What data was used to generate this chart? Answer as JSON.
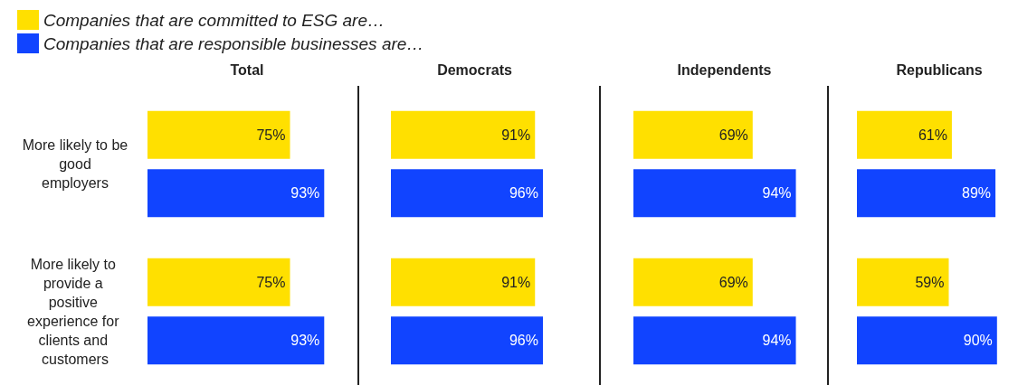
{
  "chart_data": [
    {
      "type": "bar",
      "orientation": "horizontal",
      "title": "Total",
      "legend": "top left",
      "categories": [
        "More likely to be good employers",
        "More likely to provide a positive experience for clients and customers"
      ],
      "series": [
        {
          "name": "Companies that are committed to ESG are…",
          "color": "#ffe000",
          "values": [
            75,
            75
          ],
          "value_labels": [
            "75%",
            "75%"
          ]
        },
        {
          "name": "Companies that are responsible businesses are…",
          "color": "#1144ff",
          "values": [
            93,
            93
          ],
          "value_labels": [
            "93%",
            "93%"
          ]
        }
      ]
    },
    {
      "type": "bar",
      "orientation": "horizontal",
      "title": "Democrats",
      "tick_labels": false,
      "categories": [
        "More likely to be good employers",
        "More likely to provide a positive experience for clients and customers"
      ],
      "series": [
        {
          "color": "#ffe000",
          "values": [
            91,
            91
          ],
          "value_labels": [
            "91%",
            "91%"
          ]
        },
        {
          "color": "#1144ff",
          "values": [
            96,
            96
          ],
          "value_labels": [
            "96%",
            "96%"
          ]
        }
      ]
    },
    {
      "type": "bar",
      "orientation": "horizontal",
      "title": "Independents",
      "tick_labels": false,
      "categories": [
        "More likely to be good employers",
        "More likely to provide a positive experience for clients and customers"
      ],
      "series": [
        {
          "color": "#ffe000",
          "values": [
            69,
            69
          ],
          "value_labels": [
            "69%",
            "69%"
          ]
        },
        {
          "color": "#1144ff",
          "values": [
            94,
            94
          ],
          "value_labels": [
            "94%",
            "94%"
          ]
        }
      ]
    },
    {
      "type": "bar",
      "orientation": "horizontal",
      "title": "Republicans",
      "tick_labels": false,
      "categories": [
        "More likely to be good employers",
        "More likely to provide a positive experience for clients and customers"
      ],
      "series": [
        {
          "color": "#ffe000",
          "values": [
            61,
            59
          ],
          "value_labels": [
            "61%",
            "59%"
          ]
        },
        {
          "color": "#1144ff",
          "values": [
            89,
            90
          ],
          "value_labels": [
            "89%",
            "90%"
          ]
        }
      ]
    }
  ]
}
